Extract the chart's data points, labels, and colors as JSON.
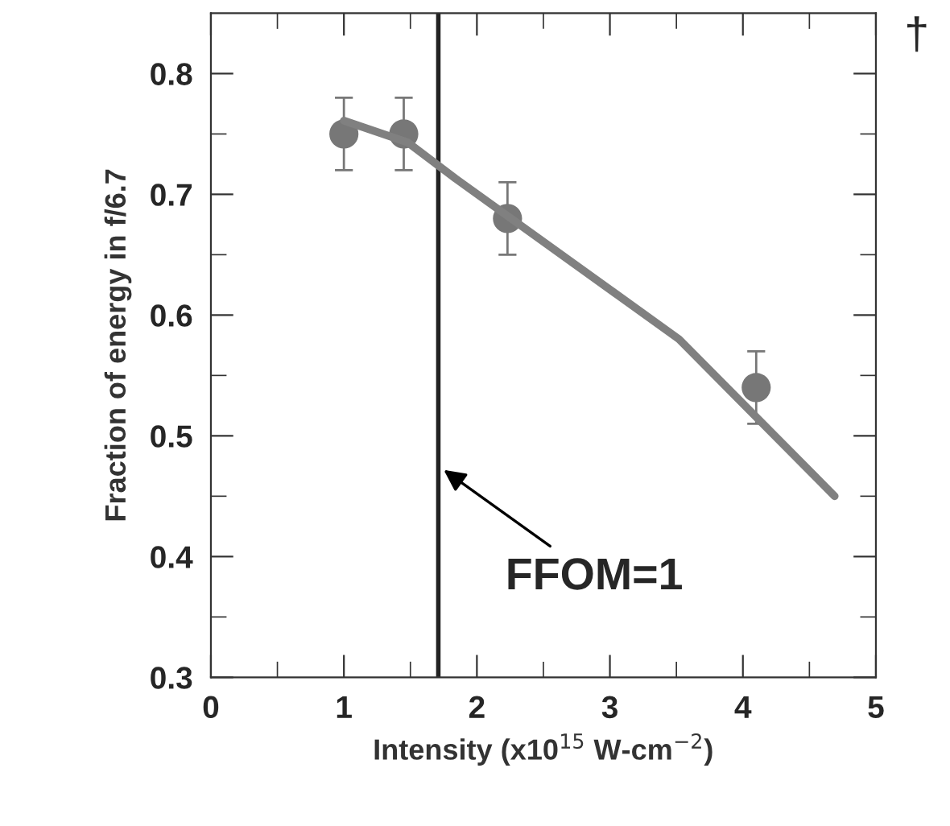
{
  "chart_data": {
    "type": "scatter",
    "xlabel": "Intensity (x10$^{15}$ W-cm$^{−2}$)",
    "ylabel": "Fraction of energy in f/6.7",
    "xlim": [
      0,
      5
    ],
    "ylim": [
      0.3,
      0.85
    ],
    "xticks": [
      0,
      1,
      2,
      3,
      4,
      5
    ],
    "yticks": [
      0.3,
      0.4,
      0.5,
      0.6,
      0.7,
      0.8
    ],
    "grid": false,
    "legend": false,
    "series": [
      {
        "marker": "circle",
        "color": "#777777",
        "x": [
          1.0,
          1.45,
          2.23,
          4.1
        ],
        "values": [
          0.75,
          0.75,
          0.68,
          0.54
        ],
        "errors": [
          0.03,
          0.03,
          0.03,
          0.03
        ]
      },
      {
        "type": "line",
        "marker": "none",
        "line_style": "solid",
        "color": "#808080",
        "x": [
          1.0,
          1.48,
          1.84,
          3.52,
          4.69
        ],
        "values": [
          0.761,
          0.743,
          0.713,
          0.58,
          0.45
        ]
      }
    ],
    "ref_lines": [
      {
        "axis": "x",
        "value": 1.71,
        "color": "#222222",
        "line_style": "solid"
      }
    ],
    "annotations": [
      {
        "text": "FFOM=1",
        "x": 1.71,
        "y": 0.475
      },
      "†"
    ]
  }
}
